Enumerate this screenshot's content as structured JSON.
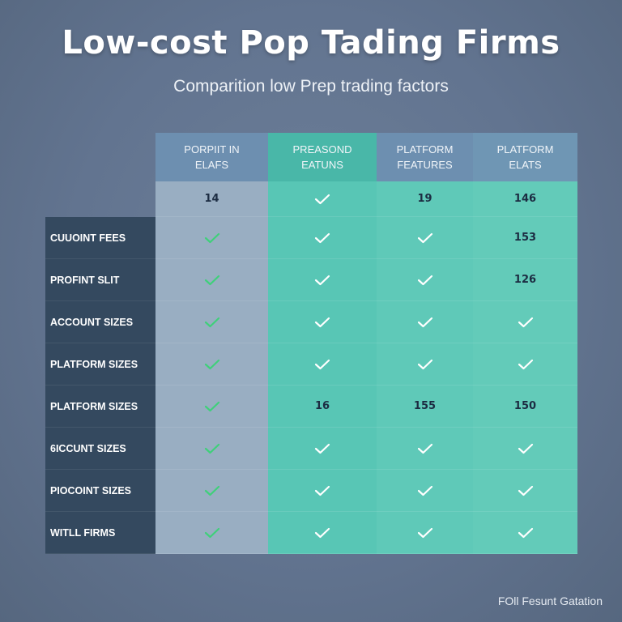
{
  "title": "Low-cost Pop Tading Firms",
  "subtitle": "Comparition low Prep trading factors",
  "footer": "FOll Fesunt Gatation",
  "columns": [
    {
      "line1": "PORPIIT IN",
      "line2": "ELAFS"
    },
    {
      "line1": "PREASOND",
      "line2": "EATUNS"
    },
    {
      "line1": "PLATFORM",
      "line2": "FEATURES"
    },
    {
      "line1": "PLATFORM",
      "line2": "ELATS"
    }
  ],
  "rows": [
    {
      "label": "",
      "cells": [
        "14",
        "check",
        "19",
        "146"
      ]
    },
    {
      "label": "CUUOINT FEES",
      "cells": [
        "check",
        "check",
        "check",
        "153"
      ]
    },
    {
      "label": "PROFINT SLIT",
      "cells": [
        "check",
        "check",
        "check",
        "126"
      ]
    },
    {
      "label": "ACCOUNT SIZES",
      "cells": [
        "check",
        "check",
        "check",
        "check"
      ]
    },
    {
      "label": "PLATFORM SIZES",
      "cells": [
        "check",
        "check",
        "check",
        "check"
      ]
    },
    {
      "label": "PLATFORM SIZES",
      "cells": [
        "check",
        "16",
        "155",
        "150"
      ]
    },
    {
      "label": "6ICCUNT SIZES",
      "cells": [
        "check",
        "check",
        "check",
        "check"
      ]
    },
    {
      "label": "PIOCOINT SIZES",
      "cells": [
        "check",
        "check",
        "check",
        "check"
      ]
    },
    {
      "label": "WITLL FIRMS",
      "cells": [
        "check",
        "check",
        "check",
        "check"
      ]
    }
  ],
  "colors": {
    "background": "#627490",
    "label_column": "#34495f",
    "column1": "#99aec2",
    "teal": "#58c6b5",
    "check_green": "#3fd07a",
    "header_blue": "#6d8fb0",
    "header_teal": "#49b7a8"
  },
  "icons": {
    "check": "checkmark-icon"
  }
}
